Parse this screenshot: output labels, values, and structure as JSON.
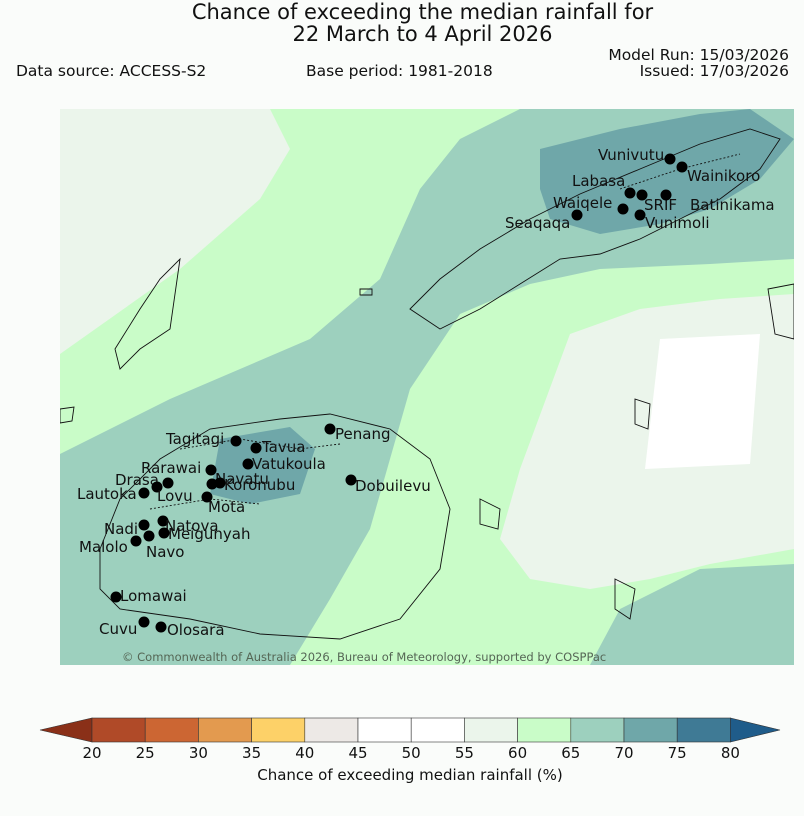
{
  "header": {
    "title_line1": "Chance of exceeding the median rainfall for",
    "title_line2": "22 March to 4 April 2026",
    "data_source": "Data source: ACCESS-S2",
    "base_period": "Base period: 1981-2018",
    "model_run": "Model Run: 15/03/2026",
    "issued": "Issued: 17/03/2026"
  },
  "map": {
    "copyright": "© Commonwealth of Australia 2026, Bureau of Meteorology, supported by COSPPac",
    "stations": [
      "Vunivutu",
      "Wainikoro",
      "Labasa",
      "Waiqele",
      "SRIF",
      "Batinikama",
      "Seaqaqa",
      "Vunimoli",
      "Tagitagi",
      "Penang",
      "Tavua",
      "Vatukoula",
      "Rarawai",
      "Navatu",
      "Drasa",
      "Koronubu",
      "Lautoka",
      "Lovu",
      "Dobuilevu",
      "Mota",
      "Natova",
      "Nadi",
      "Meigunyah",
      "Malolo",
      "Navo",
      "Lomawai",
      "Cuvu",
      "Olosara"
    ]
  },
  "colorbar": {
    "title": "Chance of exceeding median rainfall (%)",
    "ticks": [
      "20",
      "25",
      "30",
      "35",
      "40",
      "45",
      "50",
      "55",
      "60",
      "65",
      "70",
      "75",
      "80"
    ],
    "colors": [
      "#b04a28",
      "#cc6633",
      "#e39a4f",
      "#fdd168",
      "#ede9e6",
      "#ffffff",
      "#ffffff",
      "#ebf5eb",
      "#c9fcc8",
      "#9dd0be",
      "#6fa7a9",
      "#3f7a95"
    ],
    "under_color": "#8a3018",
    "over_color": "#1f5c8a"
  }
}
